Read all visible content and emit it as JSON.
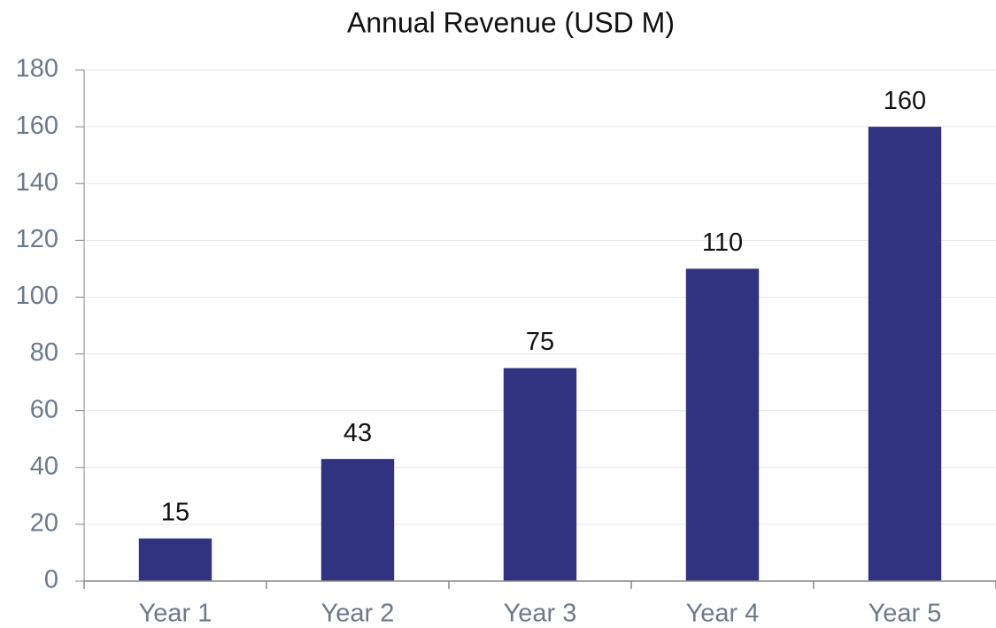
{
  "chart_data": {
    "type": "bar",
    "title": "Annual Revenue (USD M)",
    "categories": [
      "Year 1",
      "Year 2",
      "Year 3",
      "Year 4",
      "Year 5"
    ],
    "values": [
      15,
      43,
      75,
      110,
      160
    ],
    "color": "#313380",
    "ylim": [
      0,
      180
    ],
    "yticks": [
      0,
      20,
      40,
      60,
      80,
      100,
      120,
      140,
      160,
      180
    ],
    "grid": true
  }
}
